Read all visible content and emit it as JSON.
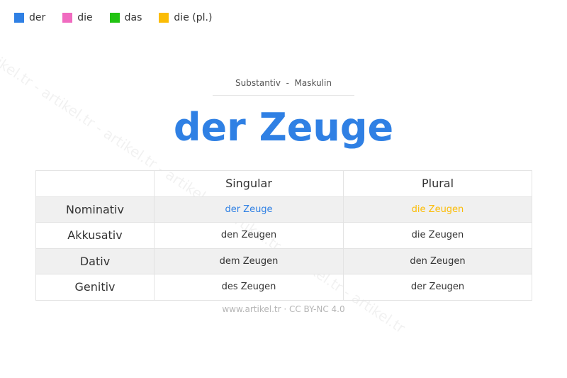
{
  "legend": [
    {
      "label": "der",
      "color": "#2f80e4"
    },
    {
      "label": "die",
      "color": "#f06bc0"
    },
    {
      "label": "das",
      "color": "#22c312"
    },
    {
      "label": "die (pl.)",
      "color": "#fbbc05"
    }
  ],
  "watermark": "artikel.tr - artikel.tr - artikel.tr - artikel.tr - artikel.tr - artikel.tr",
  "subtitle": "Substantiv  -  Maskulin",
  "title": "der Zeuge",
  "table": {
    "headers": [
      "",
      "Singular",
      "Plural"
    ],
    "rows": [
      {
        "case": "Nominativ",
        "singular": "der Zeuge",
        "plural": "die Zeugen"
      },
      {
        "case": "Akkusativ",
        "singular": "den Zeugen",
        "plural": "die Zeugen"
      },
      {
        "case": "Dativ",
        "singular": "dem Zeugen",
        "plural": "den Zeugen"
      },
      {
        "case": "Genitiv",
        "singular": "des Zeugen",
        "plural": "der Zeugen"
      }
    ]
  },
  "footer": "www.artikel.tr · CC BY-NC 4.0"
}
